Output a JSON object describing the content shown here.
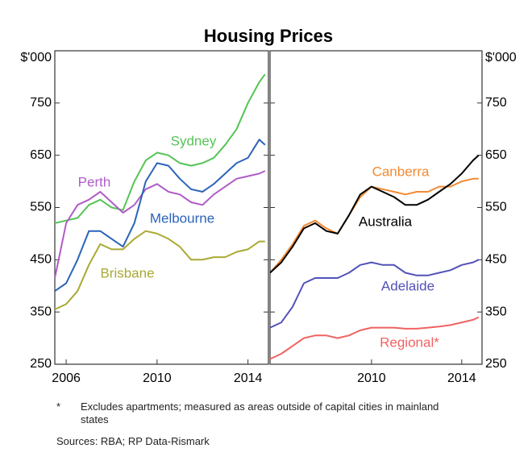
{
  "title": "Housing Prices",
  "footnote": {
    "marker": "*",
    "text": "Excludes apartments; measured as areas outside of capital cities in mainland states"
  },
  "sources": "Sources:  RBA; RP Data-Rismark",
  "chart_data": [
    {
      "type": "line",
      "y_label": "$'000",
      "x": [
        2005.5,
        2006,
        2006.5,
        2007,
        2007.5,
        2008,
        2008.5,
        2009,
        2009.5,
        2010,
        2010.5,
        2011,
        2011.5,
        2012,
        2012.5,
        2013,
        2013.5,
        2014,
        2014.5,
        2014.75
      ],
      "xlim": [
        2005.5,
        2014.9
      ],
      "xticks": [
        2006,
        2010,
        2014
      ],
      "ylim": [
        250,
        850
      ],
      "yticks": [
        250,
        350,
        450,
        550,
        650,
        750
      ],
      "series": [
        {
          "name": "Sydney",
          "color": "#55c455",
          "values": [
            520,
            525,
            530,
            555,
            565,
            550,
            545,
            600,
            640,
            655,
            650,
            635,
            630,
            635,
            645,
            670,
            700,
            750,
            790,
            805
          ]
        },
        {
          "name": "Perth",
          "color": "#b05cc6",
          "values": [
            415,
            520,
            555,
            565,
            580,
            560,
            540,
            555,
            585,
            595,
            580,
            575,
            560,
            555,
            575,
            590,
            605,
            610,
            615,
            620
          ]
        },
        {
          "name": "Melbourne",
          "color": "#2b63b9",
          "values": [
            390,
            405,
            450,
            505,
            505,
            490,
            475,
            520,
            600,
            635,
            630,
            605,
            585,
            580,
            595,
            615,
            635,
            645,
            680,
            670
          ]
        },
        {
          "name": "Brisbane",
          "color": "#a9a934",
          "values": [
            355,
            365,
            390,
            440,
            480,
            470,
            470,
            490,
            505,
            500,
            490,
            475,
            450,
            450,
            455,
            455,
            465,
            470,
            485,
            485
          ]
        }
      ]
    },
    {
      "type": "line",
      "y_label": "$'000",
      "x": [
        2005.5,
        2006,
        2006.5,
        2007,
        2007.5,
        2008,
        2008.5,
        2009,
        2009.5,
        2010,
        2010.5,
        2011,
        2011.5,
        2012,
        2012.5,
        2013,
        2013.5,
        2014,
        2014.5,
        2014.75
      ],
      "xlim": [
        2005.5,
        2014.9
      ],
      "xticks": [
        2010,
        2014
      ],
      "ylim": [
        250,
        850
      ],
      "yticks": [
        250,
        350,
        450,
        550,
        650,
        750
      ],
      "series": [
        {
          "name": "Canberra",
          "color": "#f28a32",
          "values": [
            425,
            450,
            480,
            515,
            525,
            510,
            500,
            535,
            570,
            590,
            585,
            580,
            575,
            580,
            580,
            590,
            590,
            600,
            605,
            605
          ]
        },
        {
          "name": "Australia",
          "color": "#000000",
          "values": [
            425,
            445,
            475,
            510,
            520,
            505,
            500,
            535,
            575,
            590,
            580,
            570,
            555,
            555,
            565,
            580,
            595,
            615,
            640,
            650
          ]
        },
        {
          "name": "Adelaide",
          "color": "#5252b8",
          "values": [
            320,
            330,
            360,
            405,
            415,
            415,
            415,
            425,
            440,
            445,
            440,
            440,
            425,
            420,
            420,
            425,
            430,
            440,
            445,
            450
          ]
        },
        {
          "name": "Regional*",
          "color": "#f06262",
          "values": [
            260,
            270,
            285,
            300,
            305,
            305,
            300,
            305,
            315,
            320,
            320,
            320,
            318,
            318,
            320,
            322,
            325,
            330,
            335,
            340
          ]
        }
      ]
    }
  ]
}
